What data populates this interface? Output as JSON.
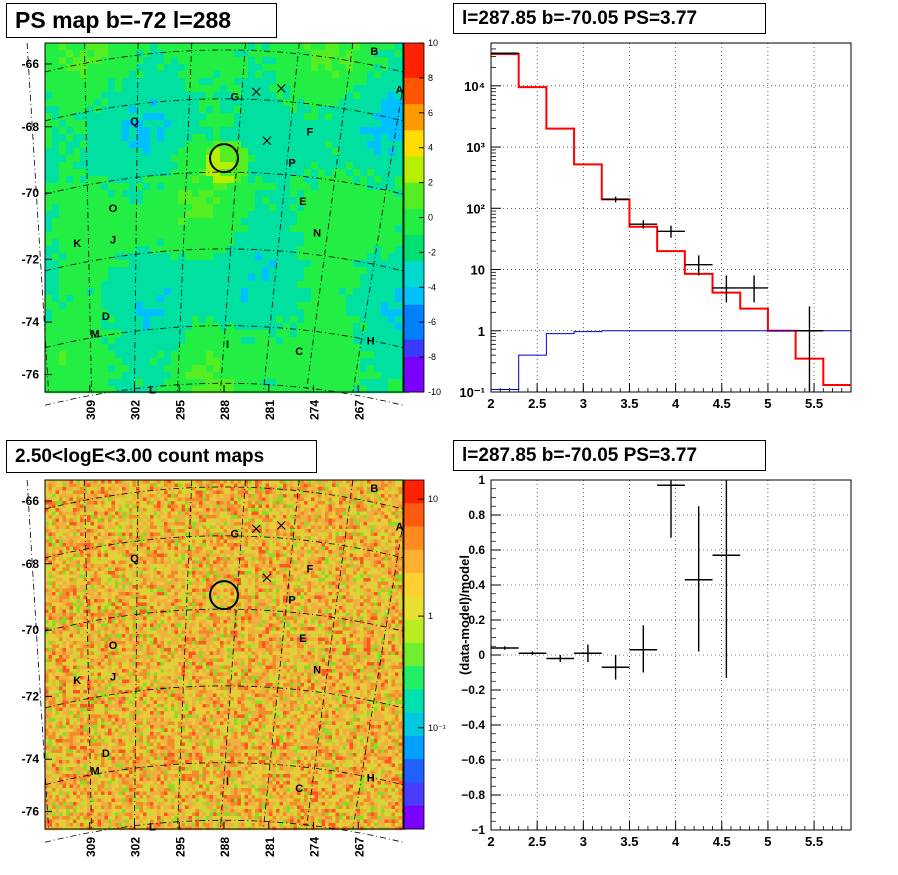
{
  "panels": {
    "ps_map": {
      "title": "PS map b=-72 l=288",
      "y_ticks": [
        "-66",
        "-68",
        "-70",
        "-72",
        "-74",
        "-76"
      ],
      "x_ticks": [
        "309",
        "302",
        "295",
        "288",
        "281",
        "274",
        "267"
      ],
      "colorbar_ticks": [
        "10",
        "8",
        "6",
        "4",
        "2",
        "0",
        "-2",
        "-4",
        "-6",
        "-8",
        "-10"
      ],
      "source_labels": [
        "B",
        "A",
        "G",
        "Q",
        "F",
        "P",
        "E",
        "O",
        "N",
        "K",
        "J",
        "D",
        "M",
        "I",
        "C",
        "H",
        "L"
      ]
    },
    "count_map": {
      "title": "2.50<logE<3.00 count maps",
      "y_ticks": [
        "-66",
        "-68",
        "-70",
        "-72",
        "-74",
        "-76"
      ],
      "x_ticks": [
        "309",
        "302",
        "295",
        "288",
        "281",
        "274",
        "267"
      ],
      "colorbar_ticks": [
        "10",
        "1",
        "10⁻¹"
      ],
      "source_labels": [
        "B",
        "A",
        "G",
        "Q",
        "F",
        "P",
        "E",
        "O",
        "N",
        "K",
        "J",
        "D",
        "M",
        "I",
        "C",
        "H",
        "L"
      ]
    },
    "spectrum": {
      "title": "l=287.85 b=-70.05 PS=3.77"
    },
    "residual": {
      "title": "l=287.85 b=-70.05 PS=3.77"
    }
  },
  "chart_data": [
    {
      "type": "heatmap",
      "title": "PS map b=-72 l=288",
      "xlabel": "",
      "ylabel": "",
      "x_ticks": [
        309,
        302,
        295,
        288,
        281,
        274,
        267
      ],
      "y_ticks": [
        -66,
        -68,
        -70,
        -72,
        -74,
        -76
      ],
      "z_range": [
        -10,
        10
      ],
      "colorbar_ticks": [
        10,
        8,
        6,
        4,
        2,
        0,
        -2,
        -4,
        -6,
        -8,
        -10
      ],
      "colors": {
        "dominant": "#44dd44",
        "circle": "#000000"
      }
    },
    {
      "type": "step",
      "title": "l=287.85 b=-70.05 PS=3.77",
      "xlabel": "",
      "ylabel": "",
      "xlim": [
        2,
        5.9
      ],
      "ylim": [
        0.1,
        50000
      ],
      "y_scale": "log",
      "x_ticks": [
        2,
        2.5,
        3,
        3.5,
        4,
        4.5,
        5,
        5.5
      ],
      "y_ticks": [
        "10⁻¹",
        "1",
        "10",
        "10²",
        "10³",
        "10⁴"
      ],
      "grid": true,
      "series": [
        {
          "color": "#ff0000",
          "edges": [
            2,
            2.3,
            2.6,
            2.9,
            3.2,
            3.5,
            3.8,
            4.1,
            4.4,
            4.7,
            5.0,
            5.3,
            5.6,
            5.9
          ],
          "values": [
            33000,
            9500,
            2000,
            520,
            140,
            50,
            20,
            8.5,
            4.2,
            2.3,
            1.0,
            0.35,
            0.13
          ]
        },
        {
          "color": "#0000cc",
          "edges": [
            2,
            2.3,
            2.6,
            2.9,
            3.2,
            3.5,
            3.8,
            4.1,
            4.4,
            4.7,
            5.0,
            5.3,
            5.6,
            5.9
          ],
          "values": [
            0.11,
            0.4,
            0.9,
            0.97,
            1.0,
            1.0,
            1.0,
            1.0,
            1.0,
            1.0,
            1.0,
            1.0,
            1.0
          ]
        },
        {
          "color": "#000000",
          "markers": "error",
          "points": [
            {
              "x": 2.15,
              "y": 34000,
              "xerr": 0.15,
              "ylo": 33000,
              "yhi": 35000
            },
            {
              "x": 3.35,
              "y": 140,
              "xerr": 0.15,
              "ylo": 125,
              "yhi": 155
            },
            {
              "x": 3.65,
              "y": 55,
              "xerr": 0.15,
              "ylo": 47,
              "yhi": 64
            },
            {
              "x": 3.95,
              "y": 42,
              "xerr": 0.15,
              "ylo": 33,
              "yhi": 52
            },
            {
              "x": 4.25,
              "y": 12,
              "xerr": 0.15,
              "ylo": 8,
              "yhi": 17
            },
            {
              "x": 4.55,
              "y": 5,
              "xerr": 0.15,
              "ylo": 2.9,
              "yhi": 8
            },
            {
              "x": 4.85,
              "y": 5,
              "xerr": 0.15,
              "ylo": 2.9,
              "yhi": 8
            },
            {
              "x": 5.45,
              "y": 1.0,
              "xerr": 0.15,
              "ylo": 0.1,
              "yhi": 2.5
            }
          ]
        }
      ]
    },
    {
      "type": "heatmap",
      "title": "2.50<logE<3.00 count maps",
      "xlabel": "",
      "ylabel": "",
      "x_ticks": [
        309,
        302,
        295,
        288,
        281,
        274,
        267
      ],
      "y_ticks": [
        -66,
        -68,
        -70,
        -72,
        -74,
        -76
      ],
      "z_scale": "log",
      "colorbar_ticks": [
        "10",
        "1",
        "10⁻¹"
      ],
      "colors": {
        "dominant": "#f0b040",
        "circle": "#000000"
      }
    },
    {
      "type": "scatter",
      "title": "l=287.85 b=-70.05 PS=3.77",
      "xlabel": "",
      "ylabel": "(data-model)/model",
      "xlim": [
        2,
        5.9
      ],
      "ylim": [
        -1,
        1
      ],
      "x_ticks": [
        2,
        2.5,
        3,
        3.5,
        4,
        4.5,
        5,
        5.5
      ],
      "y_ticks": [
        -1,
        -0.8,
        -0.6,
        -0.4,
        -0.2,
        0,
        0.2,
        0.4,
        0.6,
        0.8,
        1
      ],
      "grid": true,
      "points": [
        {
          "x": 2.15,
          "y": 0.04,
          "xerr": 0.15,
          "ylo": 0.03,
          "yhi": 0.05
        },
        {
          "x": 2.45,
          "y": 0.01,
          "xerr": 0.15,
          "ylo": 0.0,
          "yhi": 0.02
        },
        {
          "x": 2.75,
          "y": -0.02,
          "xerr": 0.15,
          "ylo": -0.04,
          "yhi": 0.0
        },
        {
          "x": 3.05,
          "y": 0.01,
          "xerr": 0.15,
          "ylo": -0.04,
          "yhi": 0.06
        },
        {
          "x": 3.35,
          "y": -0.07,
          "xerr": 0.15,
          "ylo": -0.14,
          "yhi": 0.0
        },
        {
          "x": 3.65,
          "y": 0.03,
          "xerr": 0.15,
          "ylo": -0.1,
          "yhi": 0.17
        },
        {
          "x": 3.95,
          "y": 0.97,
          "xerr": 0.15,
          "ylo": 0.67,
          "yhi": 1.0
        },
        {
          "x": 4.25,
          "y": 0.43,
          "xerr": 0.15,
          "ylo": 0.02,
          "yhi": 0.85
        },
        {
          "x": 4.55,
          "y": 0.57,
          "xerr": 0.15,
          "ylo": -0.13,
          "yhi": 1.0
        }
      ]
    }
  ]
}
